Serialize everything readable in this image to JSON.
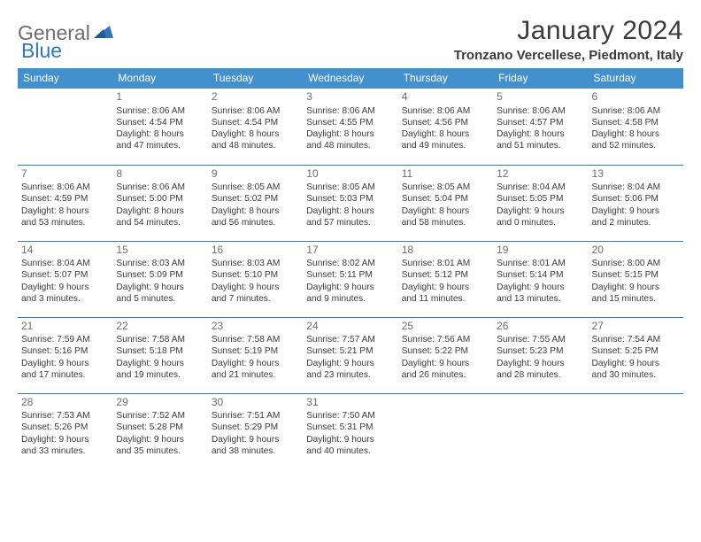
{
  "brand": {
    "text_gray": "General",
    "text_blue": "Blue"
  },
  "title": "January 2024",
  "location": "Tronzano Vercellese, Piedmont, Italy",
  "colors": {
    "header_bg": "#4390ce",
    "header_text": "#ffffff",
    "divider": "#2f78bd",
    "body_text": "#3b3b3b",
    "daynum": "#6e6e6e",
    "logo_gray": "#6e6e6e",
    "logo_blue": "#2f78bd",
    "page_bg": "#ffffff"
  },
  "typography": {
    "title_fontsize": 30,
    "location_fontsize": 15,
    "dow_fontsize": 12,
    "daynum_fontsize": 12,
    "body_fontsize": 10
  },
  "days_of_week": [
    "Sunday",
    "Monday",
    "Tuesday",
    "Wednesday",
    "Thursday",
    "Friday",
    "Saturday"
  ],
  "weeks": [
    [
      null,
      {
        "n": "1",
        "sr": "Sunrise: 8:06 AM",
        "ss": "Sunset: 4:54 PM",
        "d1": "Daylight: 8 hours",
        "d2": "and 47 minutes."
      },
      {
        "n": "2",
        "sr": "Sunrise: 8:06 AM",
        "ss": "Sunset: 4:54 PM",
        "d1": "Daylight: 8 hours",
        "d2": "and 48 minutes."
      },
      {
        "n": "3",
        "sr": "Sunrise: 8:06 AM",
        "ss": "Sunset: 4:55 PM",
        "d1": "Daylight: 8 hours",
        "d2": "and 48 minutes."
      },
      {
        "n": "4",
        "sr": "Sunrise: 8:06 AM",
        "ss": "Sunset: 4:56 PM",
        "d1": "Daylight: 8 hours",
        "d2": "and 49 minutes."
      },
      {
        "n": "5",
        "sr": "Sunrise: 8:06 AM",
        "ss": "Sunset: 4:57 PM",
        "d1": "Daylight: 8 hours",
        "d2": "and 51 minutes."
      },
      {
        "n": "6",
        "sr": "Sunrise: 8:06 AM",
        "ss": "Sunset: 4:58 PM",
        "d1": "Daylight: 8 hours",
        "d2": "and 52 minutes."
      }
    ],
    [
      {
        "n": "7",
        "sr": "Sunrise: 8:06 AM",
        "ss": "Sunset: 4:59 PM",
        "d1": "Daylight: 8 hours",
        "d2": "and 53 minutes."
      },
      {
        "n": "8",
        "sr": "Sunrise: 8:06 AM",
        "ss": "Sunset: 5:00 PM",
        "d1": "Daylight: 8 hours",
        "d2": "and 54 minutes."
      },
      {
        "n": "9",
        "sr": "Sunrise: 8:05 AM",
        "ss": "Sunset: 5:02 PM",
        "d1": "Daylight: 8 hours",
        "d2": "and 56 minutes."
      },
      {
        "n": "10",
        "sr": "Sunrise: 8:05 AM",
        "ss": "Sunset: 5:03 PM",
        "d1": "Daylight: 8 hours",
        "d2": "and 57 minutes."
      },
      {
        "n": "11",
        "sr": "Sunrise: 8:05 AM",
        "ss": "Sunset: 5:04 PM",
        "d1": "Daylight: 8 hours",
        "d2": "and 58 minutes."
      },
      {
        "n": "12",
        "sr": "Sunrise: 8:04 AM",
        "ss": "Sunset: 5:05 PM",
        "d1": "Daylight: 9 hours",
        "d2": "and 0 minutes."
      },
      {
        "n": "13",
        "sr": "Sunrise: 8:04 AM",
        "ss": "Sunset: 5:06 PM",
        "d1": "Daylight: 9 hours",
        "d2": "and 2 minutes."
      }
    ],
    [
      {
        "n": "14",
        "sr": "Sunrise: 8:04 AM",
        "ss": "Sunset: 5:07 PM",
        "d1": "Daylight: 9 hours",
        "d2": "and 3 minutes."
      },
      {
        "n": "15",
        "sr": "Sunrise: 8:03 AM",
        "ss": "Sunset: 5:09 PM",
        "d1": "Daylight: 9 hours",
        "d2": "and 5 minutes."
      },
      {
        "n": "16",
        "sr": "Sunrise: 8:03 AM",
        "ss": "Sunset: 5:10 PM",
        "d1": "Daylight: 9 hours",
        "d2": "and 7 minutes."
      },
      {
        "n": "17",
        "sr": "Sunrise: 8:02 AM",
        "ss": "Sunset: 5:11 PM",
        "d1": "Daylight: 9 hours",
        "d2": "and 9 minutes."
      },
      {
        "n": "18",
        "sr": "Sunrise: 8:01 AM",
        "ss": "Sunset: 5:12 PM",
        "d1": "Daylight: 9 hours",
        "d2": "and 11 minutes."
      },
      {
        "n": "19",
        "sr": "Sunrise: 8:01 AM",
        "ss": "Sunset: 5:14 PM",
        "d1": "Daylight: 9 hours",
        "d2": "and 13 minutes."
      },
      {
        "n": "20",
        "sr": "Sunrise: 8:00 AM",
        "ss": "Sunset: 5:15 PM",
        "d1": "Daylight: 9 hours",
        "d2": "and 15 minutes."
      }
    ],
    [
      {
        "n": "21",
        "sr": "Sunrise: 7:59 AM",
        "ss": "Sunset: 5:16 PM",
        "d1": "Daylight: 9 hours",
        "d2": "and 17 minutes."
      },
      {
        "n": "22",
        "sr": "Sunrise: 7:58 AM",
        "ss": "Sunset: 5:18 PM",
        "d1": "Daylight: 9 hours",
        "d2": "and 19 minutes."
      },
      {
        "n": "23",
        "sr": "Sunrise: 7:58 AM",
        "ss": "Sunset: 5:19 PM",
        "d1": "Daylight: 9 hours",
        "d2": "and 21 minutes."
      },
      {
        "n": "24",
        "sr": "Sunrise: 7:57 AM",
        "ss": "Sunset: 5:21 PM",
        "d1": "Daylight: 9 hours",
        "d2": "and 23 minutes."
      },
      {
        "n": "25",
        "sr": "Sunrise: 7:56 AM",
        "ss": "Sunset: 5:22 PM",
        "d1": "Daylight: 9 hours",
        "d2": "and 26 minutes."
      },
      {
        "n": "26",
        "sr": "Sunrise: 7:55 AM",
        "ss": "Sunset: 5:23 PM",
        "d1": "Daylight: 9 hours",
        "d2": "and 28 minutes."
      },
      {
        "n": "27",
        "sr": "Sunrise: 7:54 AM",
        "ss": "Sunset: 5:25 PM",
        "d1": "Daylight: 9 hours",
        "d2": "and 30 minutes."
      }
    ],
    [
      {
        "n": "28",
        "sr": "Sunrise: 7:53 AM",
        "ss": "Sunset: 5:26 PM",
        "d1": "Daylight: 9 hours",
        "d2": "and 33 minutes."
      },
      {
        "n": "29",
        "sr": "Sunrise: 7:52 AM",
        "ss": "Sunset: 5:28 PM",
        "d1": "Daylight: 9 hours",
        "d2": "and 35 minutes."
      },
      {
        "n": "30",
        "sr": "Sunrise: 7:51 AM",
        "ss": "Sunset: 5:29 PM",
        "d1": "Daylight: 9 hours",
        "d2": "and 38 minutes."
      },
      {
        "n": "31",
        "sr": "Sunrise: 7:50 AM",
        "ss": "Sunset: 5:31 PM",
        "d1": "Daylight: 9 hours",
        "d2": "and 40 minutes."
      },
      null,
      null,
      null
    ]
  ]
}
